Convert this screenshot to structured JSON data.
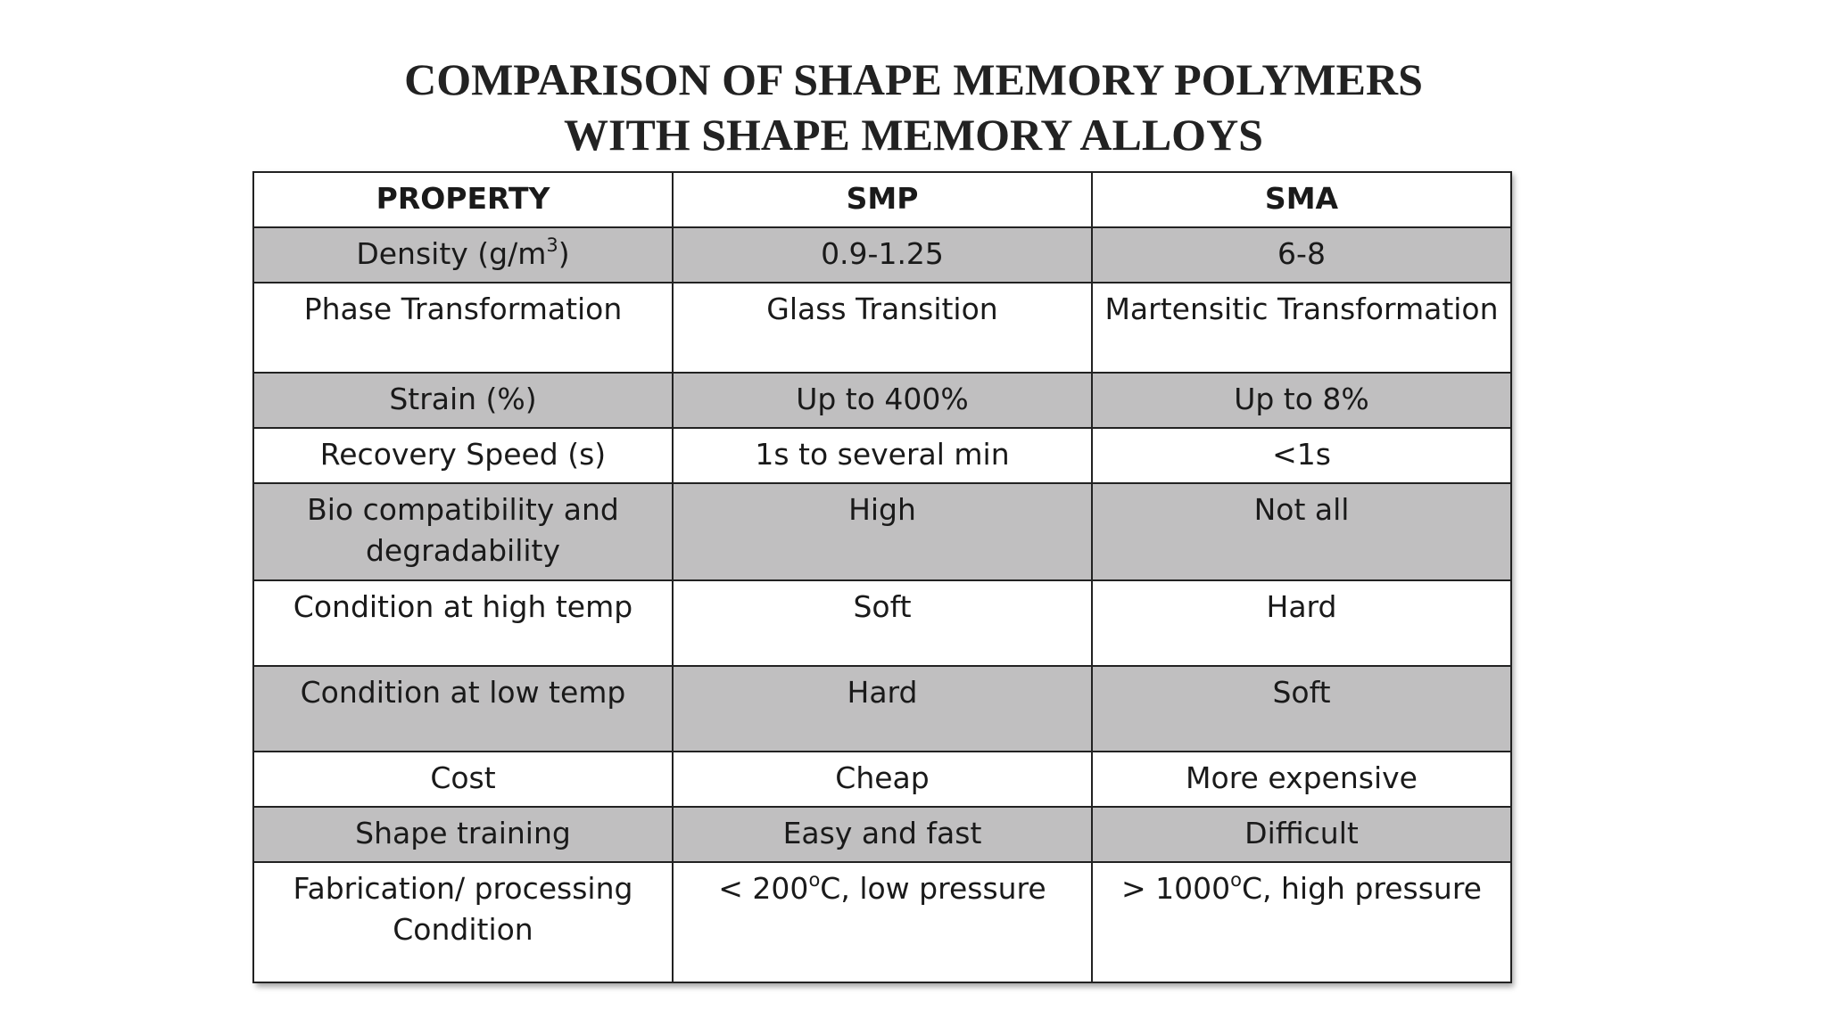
{
  "title": {
    "line1": "COMPARISON OF SHAPE MEMORY POLYMERS",
    "line2": "WITH SHAPE MEMORY ALLOYS"
  },
  "table": {
    "headers": [
      "PROPERTY",
      "SMP",
      "SMA"
    ],
    "rows": [
      {
        "property": "Density (g/m",
        "property_sup": "3",
        "property_after": ")",
        "smp": "0.9-1.25",
        "sma": "6-8"
      },
      {
        "property": "Phase Transformation",
        "smp": "Glass Transition",
        "sma": "Martensitic Transformation"
      },
      {
        "property": "Strain (%)",
        "smp": "Up to 400%",
        "sma": "Up to 8%"
      },
      {
        "property": "Recovery Speed (s)",
        "smp": "1s to several min",
        "sma": "<1s"
      },
      {
        "property": "Bio compatibility and degradability",
        "smp": "High",
        "sma": "Not all"
      },
      {
        "property": "Condition at high temp",
        "smp": "Soft",
        "sma": "Hard"
      },
      {
        "property": "Condition at low temp",
        "smp": "Hard",
        "sma": "Soft"
      },
      {
        "property": "Cost",
        "smp": "Cheap",
        "sma": "More expensive"
      },
      {
        "property": "Shape training",
        "smp": "Easy and fast",
        "sma": "Difficult"
      },
      {
        "property": "Fabrication/ processing Condition",
        "smp": "< 200",
        "smp_sup": "o",
        "smp_after": "C, low pressure",
        "sma": "> 1000",
        "sma_sup": "o",
        "sma_after": "C, high pressure"
      }
    ]
  },
  "colors": {
    "shaded_row": "#c0bfc0",
    "plain_row": "#ffffff",
    "border": "#222222"
  }
}
